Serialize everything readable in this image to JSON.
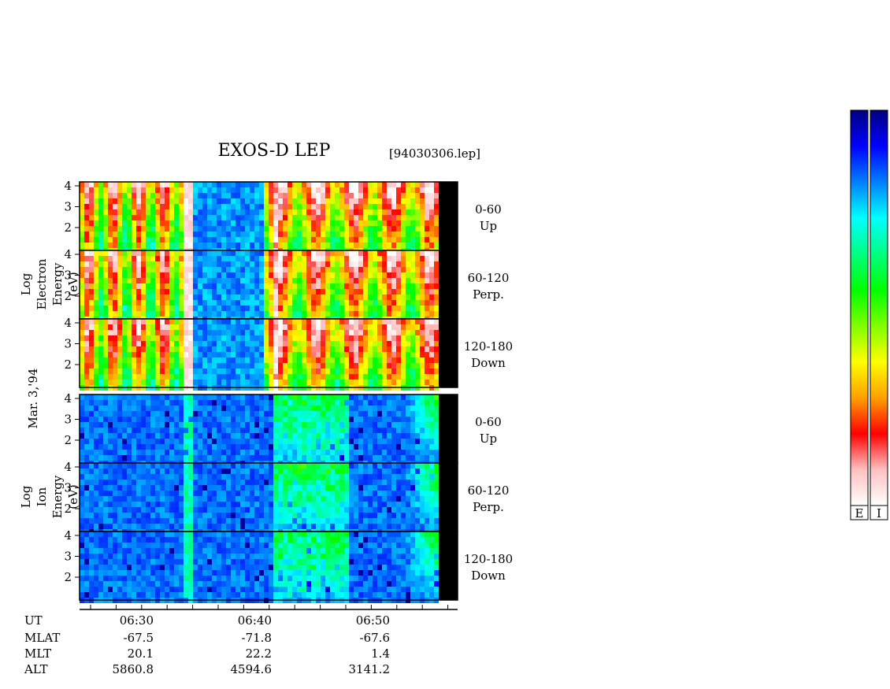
{
  "chart_data": {
    "type": "heatmap",
    "title": "EXOS-D LEP",
    "file": "[94030306.lep]",
    "date_label": "Mar. 3,'94",
    "y_ticks": [
      "4",
      "3",
      "2"
    ],
    "colorbar": {
      "colors": [
        "#000080",
        "#0000ff",
        "#0080ff",
        "#00ffff",
        "#00ff80",
        "#00ff00",
        "#80ff00",
        "#ffff00",
        "#ffa000",
        "#ff0000",
        "#ffc0c0",
        "#ffffff"
      ],
      "labels": [
        "E",
        "I"
      ]
    },
    "groups": [
      {
        "ylabel_lines": [
          "Log",
          "Electron",
          "Energy",
          "(eV)"
        ],
        "panels": [
          {
            "range": "0-60",
            "dir": "Up"
          },
          {
            "range": "60-120",
            "dir": "Perp."
          },
          {
            "range": "120-180",
            "dir": "Down"
          }
        ]
      },
      {
        "ylabel_lines": [
          "Log",
          "Ion",
          "Energy",
          "(eV)"
        ],
        "panels": [
          {
            "range": "0-60",
            "dir": "Up"
          },
          {
            "range": "60-120",
            "dir": "Perp."
          },
          {
            "range": "120-180",
            "dir": "Down"
          }
        ]
      }
    ],
    "footer": {
      "row_labels": [
        "UT",
        "MLAT",
        "MLT",
        "ALT"
      ],
      "columns": [
        {
          "UT": "06:30",
          "MLAT": "-67.5",
          "MLT": "20.1",
          "ALT": "5860.8"
        },
        {
          "UT": "06:40",
          "MLAT": "-71.8",
          "MLT": "22.2",
          "ALT": "4594.6"
        },
        {
          "UT": "06:50",
          "MLAT": "-67.6",
          "MLT": "1.4",
          "ALT": "3141.2"
        }
      ]
    }
  }
}
